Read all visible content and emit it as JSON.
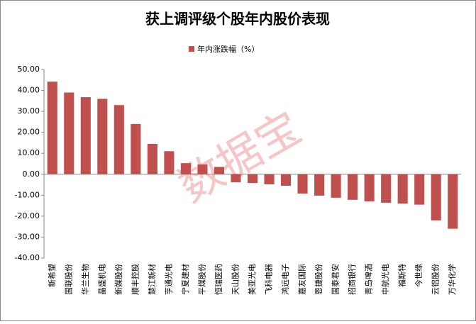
{
  "chart_data": {
    "type": "bar",
    "title": "获上调评级个股年内股价表现",
    "series": [
      {
        "name": "年内涨跌幅（%）",
        "color": "#c0504d",
        "values": [
          44.2,
          39,
          36.8,
          36,
          33,
          24,
          14.5,
          11,
          5.3,
          4.7,
          3.5,
          -3.8,
          -4.2,
          -4.8,
          -5.5,
          -9.2,
          -10.2,
          -11.2,
          -12.2,
          -13,
          -13.6,
          -14,
          -14.5,
          -22,
          -26
        ]
      }
    ],
    "categories": [
      "新希望",
      "国联股份",
      "华兰生物",
      "晶盛机电",
      "新媒股份",
      "顺丰控股",
      "楚江新材",
      "亨通光电",
      "宁夏建材",
      "平煤股份",
      "恒瑞医药",
      "天山股份",
      "美亚光电",
      "飞科电器",
      "鸿远电子",
      "嘉友国际",
      "恩捷股份",
      "国泰君安",
      "招商银行",
      "青岛啤酒",
      "中航光电",
      "福斯特",
      "今世缘",
      "云铝股份",
      "万华化学"
    ],
    "ylim": [
      -40,
      50
    ],
    "yticks": [
      {
        "value": -40,
        "label": "-40.00"
      },
      {
        "value": -30,
        "label": "-30.00"
      },
      {
        "value": -20,
        "label": "-20.00"
      },
      {
        "value": -10,
        "label": "-10.00"
      },
      {
        "value": 0,
        "label": "0.00"
      },
      {
        "value": 10,
        "label": "10.00"
      },
      {
        "value": 20,
        "label": "20.00"
      },
      {
        "value": 30,
        "label": "30.00"
      },
      {
        "value": 40,
        "label": "40.00"
      },
      {
        "value": 50,
        "label": "50.00"
      }
    ],
    "legend": "top",
    "watermark": "数据宝"
  }
}
